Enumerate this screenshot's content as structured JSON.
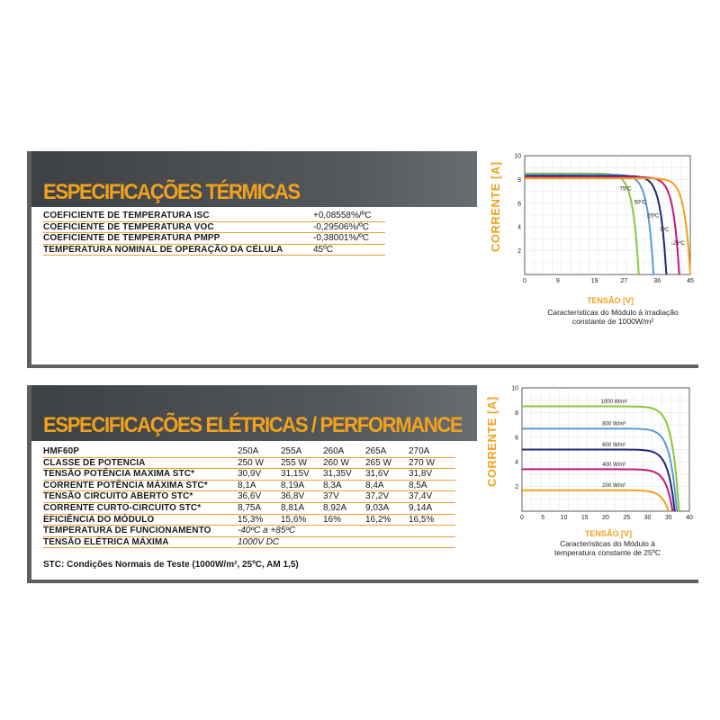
{
  "thermal": {
    "title": "ESPECIFICAÇÕES TÉRMICAS",
    "rows": [
      {
        "label": "COEFICIENTE DE TEMPERATURA ISC",
        "value": "+0,08558%/ºC"
      },
      {
        "label": "COEFICIENTE DE TEMPERATURA VOC",
        "value": "-0,29506%/ºC"
      },
      {
        "label": "COEFICIENTE DE TEMPERATURA PMPP",
        "value": "-0,38001%/ºC"
      },
      {
        "label": "TEMPERATURA NOMINAL DE OPERAÇÃO DA CÉLULA",
        "value": "45ºC"
      }
    ]
  },
  "electrical": {
    "title": "ESPECIFICAÇÕES ELÉTRICAS / PERFORMANCE",
    "model_label": "HMF60P",
    "models": [
      "250A",
      "255A",
      "260A",
      "265A",
      "270A"
    ],
    "rows": [
      {
        "label": "CLASSE DE POTENCIA",
        "values": [
          "250 W",
          "255 W",
          "260 W",
          "265 W",
          "270 W"
        ]
      },
      {
        "label": "TENSÃO POTÊNCIA MAXIMA STC*",
        "values": [
          "30,9V",
          "31,15V",
          "31,35V",
          "31,6V",
          "31,8V"
        ]
      },
      {
        "label": "CORRENTE POTÊNCIA MÁXIMA STC*",
        "values": [
          "8,1A",
          "8,19A",
          "8,3A",
          "8,4A",
          "8,5A"
        ]
      },
      {
        "label": "TENSÃO CIRCUITO ABERTO STC*",
        "values": [
          "36,6V",
          "36,8V",
          "37V",
          "37,2V",
          "37,4V"
        ]
      },
      {
        "label": "CORRENTE CURTO-CIRCUITO STC*",
        "values": [
          "8,75A",
          "8,81A",
          "8,92A",
          "9,03A",
          "9,14A"
        ]
      },
      {
        "label": "EFICIÊNCIA DO MÓDULO",
        "values": [
          "15,3%",
          "15,6%",
          "16%",
          "16,2%",
          "16,5%"
        ]
      }
    ],
    "span_rows": [
      {
        "label": "TEMPERATURA DE FUNCIONAMENTO",
        "value": "-40ºC a +85ºC"
      },
      {
        "label": "TENSÃO ELÉTRICA MÁXIMA",
        "value": "1000V DC"
      }
    ],
    "note": "STC: Condições Normais de Teste (1000W/m², 25ºC, AM 1,5)"
  },
  "chart_data": [
    {
      "type": "line",
      "ylabel": "CORRENTE [A]",
      "xlabel": "TENSÃO [V]",
      "caption": [
        "Características do Módulo à irradiação",
        "constante de 1000W/m²"
      ],
      "xlim": [
        0,
        45
      ],
      "ylim": [
        0,
        10
      ],
      "xticks": [
        "0",
        "9",
        "19",
        "27",
        "36",
        "45"
      ],
      "yticks": [
        "2",
        "4",
        "6",
        "8",
        "10"
      ],
      "series": [
        {
          "name": "75ºC",
          "isc": 8.5,
          "voc": 31,
          "color": "#8cc63e"
        },
        {
          "name": "50ºC",
          "isc": 8.4,
          "voc": 35,
          "color": "#5b9bd5"
        },
        {
          "name": "25ºC",
          "isc": 8.3,
          "voc": 38.5,
          "color": "#1e2a78"
        },
        {
          "name": "0ºC",
          "isc": 8.2,
          "voc": 42,
          "color": "#c2197a"
        },
        {
          "name": "-25ºC",
          "isc": 8.1,
          "voc": 45,
          "color": "#f0a21b"
        }
      ]
    },
    {
      "type": "line",
      "ylabel": "CORRENTE [A]",
      "xlabel": "TENSÃO [V]",
      "caption": [
        "Características do Módulo à",
        "temperatura constante de 25ºC"
      ],
      "xlim": [
        0,
        40
      ],
      "ylim": [
        0,
        10
      ],
      "xticks": [
        "0",
        "5",
        "10",
        "15",
        "20",
        "25",
        "30",
        "35",
        "40"
      ],
      "yticks": [
        "2",
        "4",
        "6",
        "8",
        "10"
      ],
      "series": [
        {
          "name": "1000 W/m²",
          "isc": 8.5,
          "voc": 37.5,
          "color": "#8cc63e"
        },
        {
          "name": "800 W/m²",
          "isc": 6.7,
          "voc": 37,
          "color": "#5b9bd5"
        },
        {
          "name": "600 W/m²",
          "isc": 5.0,
          "voc": 36.5,
          "color": "#1e2a78"
        },
        {
          "name": "400 W/m²",
          "isc": 3.4,
          "voc": 36,
          "color": "#c2197a"
        },
        {
          "name": "200 W/m²",
          "isc": 1.7,
          "voc": 35,
          "color": "#f0a21b"
        }
      ]
    }
  ]
}
